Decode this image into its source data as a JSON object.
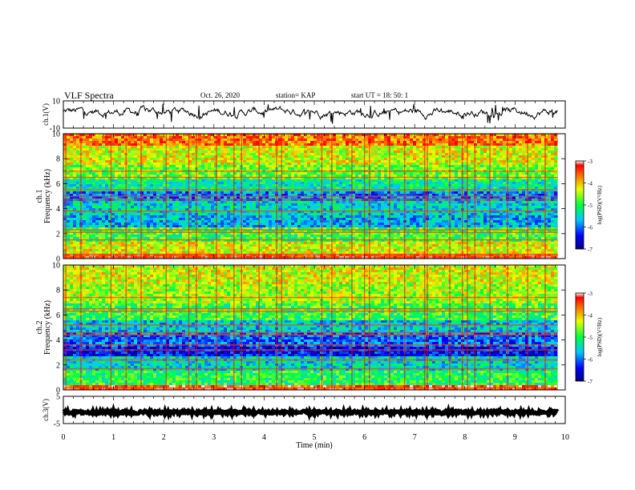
{
  "header": {
    "title": "VLF Spectra",
    "date": "Oct. 26, 2020",
    "station": "station= KAP",
    "start": "start  UT =   18: 50: 1"
  },
  "chart_data": [
    {
      "type": "line",
      "panel": "ch1-waveform",
      "ylabel": "ch.1(V)",
      "ylim": [
        -10,
        10
      ],
      "yticks": [
        "10",
        "-10"
      ],
      "x_range_min": [
        0,
        9.85
      ],
      "trace_min_max_approx": [
        -7,
        8
      ],
      "trace_mean_approx": 2,
      "color": "#000000"
    },
    {
      "type": "heatmap",
      "panel": "ch1-spectrogram",
      "ylabel": "ch.1  Frequency (kHz)",
      "ylim": [
        0,
        10
      ],
      "yticks": [
        "0",
        "2",
        "4",
        "6",
        "8",
        "10"
      ],
      "x_range_min": [
        0,
        9.85
      ],
      "colorbar": {
        "label": "log(PSD)(V²/Hz)",
        "ticks": [
          "-3",
          "-4",
          "-5",
          "-6",
          "-7"
        ],
        "range": [
          -7,
          -3
        ]
      },
      "bands": [
        {
          "f": [
            0,
            0.4
          ],
          "level": -3.4
        },
        {
          "f": [
            0.4,
            1.4
          ],
          "level": -4.3
        },
        {
          "f": [
            1.4,
            2.5
          ],
          "level": -4.9
        },
        {
          "f": [
            2.5,
            3.4
          ],
          "level": -5.7
        },
        {
          "f": [
            3.4,
            4.6
          ],
          "level": -5.5
        },
        {
          "f": [
            4.6,
            5.4
          ],
          "level": -5.9
        },
        {
          "f": [
            5.4,
            6.3
          ],
          "level": -5.3
        },
        {
          "f": [
            6.3,
            7.5
          ],
          "level": -4.7
        },
        {
          "f": [
            7.5,
            9.0
          ],
          "level": -4.3
        },
        {
          "f": [
            9.0,
            10
          ],
          "level": -3.7
        }
      ],
      "lines_khz": [
        0.1,
        0.25,
        0.35,
        1.5,
        2.1,
        2.3,
        3.8,
        4.7,
        5.0,
        5.5,
        6.5,
        7.0
      ],
      "bursts_min": [
        0.05,
        0.35,
        0.95,
        1.25,
        1.55,
        2.05,
        2.5,
        2.65,
        3.05,
        3.4,
        3.55,
        3.9,
        4.25,
        4.35,
        5.15,
        5.35,
        5.75,
        6.0,
        6.1,
        6.5,
        6.8,
        7.2,
        7.25,
        7.7,
        7.95,
        8.05,
        8.2,
        8.5,
        8.85,
        9.25,
        9.6
      ]
    },
    {
      "type": "heatmap",
      "panel": "ch2-spectrogram",
      "ylabel": "ch.2  Frequency (kHz)",
      "ylim": [
        0,
        10
      ],
      "yticks": [
        "0",
        "2",
        "4",
        "6",
        "8",
        "10"
      ],
      "x_range_min": [
        0,
        9.85
      ],
      "colorbar": {
        "label": "log(PSD)(V²/Hz)",
        "ticks": [
          "-3",
          "-4",
          "-5",
          "-6",
          "-7"
        ],
        "range": [
          -7,
          -3
        ]
      },
      "bands": [
        {
          "f": [
            0,
            0.3
          ],
          "level": -3.4
        },
        {
          "f": [
            0.3,
            1.5
          ],
          "level": -5.0
        },
        {
          "f": [
            1.5,
            2.6
          ],
          "level": -5.5
        },
        {
          "f": [
            2.6,
            3.5
          ],
          "level": -6.4
        },
        {
          "f": [
            3.5,
            4.6
          ],
          "level": -6.0
        },
        {
          "f": [
            4.6,
            5.6
          ],
          "level": -5.6
        },
        {
          "f": [
            5.6,
            7.0
          ],
          "level": -4.9
        },
        {
          "f": [
            7.0,
            8.5
          ],
          "level": -4.5
        },
        {
          "f": [
            8.5,
            10
          ],
          "level": -4.3
        }
      ],
      "lines_khz": [
        0.15,
        1.7,
        2.4,
        3.2,
        3.6,
        4.4,
        4.6,
        5.2,
        6.3,
        6.5,
        7.4
      ],
      "bursts_min": [
        0.05,
        0.35,
        0.95,
        1.25,
        1.55,
        2.05,
        2.5,
        2.65,
        3.05,
        3.4,
        3.55,
        3.9,
        4.25,
        4.35,
        5.15,
        5.35,
        5.75,
        6.0,
        6.1,
        6.5,
        6.8,
        7.2,
        7.25,
        7.7,
        7.95,
        8.05,
        8.2,
        8.5,
        8.85,
        9.25,
        9.6
      ]
    },
    {
      "type": "line",
      "panel": "ch3-waveform",
      "ylabel": "ch.3(V)",
      "ylim": [
        -5,
        5
      ],
      "yticks": [
        "5",
        "-5"
      ],
      "x_range_min": [
        0,
        9.85
      ],
      "trace_min_max_approx": [
        -1.5,
        -0.3
      ],
      "color": "#000000"
    }
  ],
  "xaxis": {
    "label": "Time  (min)",
    "range": [
      0,
      10
    ],
    "ticks": [
      "0",
      "1",
      "2",
      "3",
      "4",
      "5",
      "6",
      "7",
      "8",
      "9",
      "10"
    ]
  }
}
